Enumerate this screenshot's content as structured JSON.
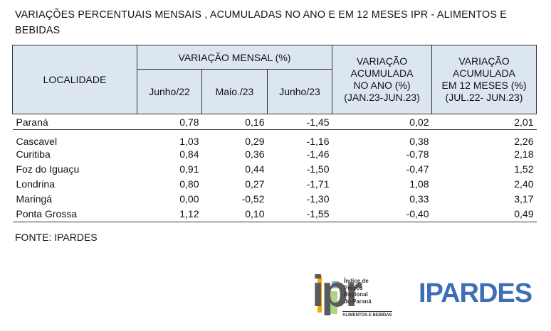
{
  "title": "VARIAÇÕES PERCENTUAIS MENSAIS , ACUMULADAS NO ANO E EM 12 MESES IPR - ALIMENTOS E BEBIDAS",
  "table": {
    "header": {
      "localidade": "LOCALIDADE",
      "monthly": "VARIAÇÃO MENSAL (%)",
      "months": [
        "Junho/22",
        "Maio./23",
        "Junho/23"
      ],
      "year": [
        "VARIAÇÃO",
        "ACUMULADA",
        "NO ANO (%)",
        "(JAN.23-JUN.23)"
      ],
      "twelve": [
        "VARIAÇÃO",
        "ACUMULADA",
        "EM 12 MESES (%)",
        "(JUL.22- JUN.23)"
      ]
    },
    "rows": [
      [
        "Paraná",
        "0,78",
        "0,16",
        "-1,45",
        "0,02",
        "2,01"
      ],
      [
        "Cascavel",
        "1,03",
        "0,29",
        "-1,16",
        "0,38",
        "2,26"
      ],
      [
        "Curitiba",
        "0,84",
        "0,36",
        "-1,46",
        "-0,78",
        "2,18"
      ],
      [
        "Foz do Iguaçu",
        "0,91",
        "0,44",
        "-1,50",
        "-0,47",
        "1,52"
      ],
      [
        "Londrina",
        "0,80",
        "0,27",
        "-1,71",
        "1,08",
        "2,40"
      ],
      [
        "Maringá",
        "0,00",
        "-0,52",
        "-1,30",
        "0,33",
        "3,17"
      ],
      [
        "Ponta Grossa",
        "1,12",
        "0,10",
        "-1,55",
        "-0,40",
        "0,49"
      ]
    ]
  },
  "source": "FONTE: IPARDES",
  "logos": {
    "ipr": {
      "mark": "ipr",
      "name": [
        "Índice de",
        "Preços",
        "Regional",
        "do Paraná"
      ],
      "subtitle": "ALIMENTOS E BEBIDAS"
    },
    "ipardes": "IPARDES"
  }
}
